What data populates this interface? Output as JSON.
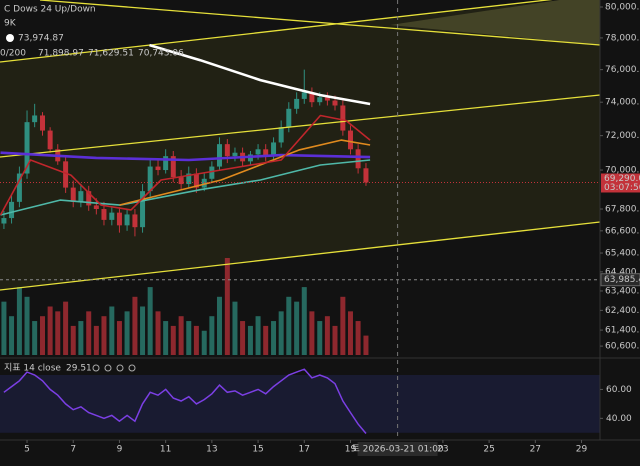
{
  "chart_data": {
    "type": "candlestick",
    "title": "C Dows 24 Up/Down",
    "subtitle": "9K",
    "ma_label": "0/200",
    "x": [
      4,
      4.33,
      4.67,
      5,
      5.33,
      5.67,
      6,
      6.33,
      6.67,
      7,
      7.33,
      7.67,
      8,
      8.33,
      8.67,
      9,
      9.33,
      9.67,
      10,
      10.33,
      10.67,
      11,
      11.33,
      11.67,
      12,
      12.33,
      12.67,
      13,
      13.33,
      13.67,
      14,
      14.33,
      14.67,
      15,
      15.33,
      15.67,
      16,
      16.33,
      16.67,
      17,
      17.33,
      17.67,
      18,
      18.33,
      18.67,
      19,
      19.33,
      19.67
    ],
    "open": [
      67000,
      67300,
      68200,
      69800,
      72800,
      73200,
      72300,
      71200,
      70500,
      69000,
      68200,
      68800,
      68000,
      67800,
      67200,
      67600,
      66900,
      67500,
      66800,
      68800,
      70200,
      70000,
      70800,
      69600,
      69200,
      69800,
      69000,
      69500,
      70200,
      71500,
      70800,
      71000,
      70500,
      70900,
      71200,
      70800,
      71600,
      72500,
      73600,
      74200,
      74600,
      74000,
      74300,
      74100,
      73800,
      72300,
      71200,
      70100
    ],
    "high": [
      67700,
      68600,
      70200,
      73500,
      73900,
      73400,
      72500,
      71500,
      70800,
      69400,
      69200,
      69100,
      68400,
      68200,
      67900,
      67900,
      67800,
      67800,
      69200,
      70600,
      70600,
      71200,
      71100,
      70000,
      70200,
      70100,
      69800,
      70500,
      71900,
      71800,
      71300,
      71300,
      71100,
      71500,
      71500,
      71900,
      72900,
      74000,
      74600,
      76000,
      74900,
      74600,
      74600,
      74400,
      74100,
      72600,
      71500,
      70400
    ],
    "low": [
      66700,
      67000,
      67900,
      69500,
      72500,
      72000,
      71000,
      70300,
      68700,
      67900,
      67900,
      67700,
      67500,
      66900,
      66900,
      66500,
      66600,
      66300,
      66500,
      68500,
      69700,
      69800,
      69300,
      68900,
      69000,
      68700,
      68800,
      69300,
      70000,
      70400,
      70500,
      70200,
      70300,
      70600,
      70500,
      70500,
      71300,
      72200,
      73300,
      73900,
      73700,
      73800,
      73800,
      73500,
      72000,
      70900,
      69800,
      69100
    ],
    "close": [
      67300,
      68200,
      69800,
      72800,
      73200,
      72300,
      71200,
      70500,
      69000,
      68200,
      68800,
      68000,
      67800,
      67200,
      67600,
      66900,
      67500,
      66800,
      68800,
      70200,
      70000,
      70800,
      69600,
      69200,
      69800,
      69000,
      69500,
      70200,
      71500,
      70800,
      71000,
      70500,
      70900,
      71200,
      70800,
      71600,
      72500,
      73600,
      74200,
      74600,
      74000,
      74300,
      74100,
      73800,
      72300,
      71200,
      70100,
      69290
    ],
    "up_color": "#2f8f80",
    "down_color": "#c3323a",
    "volume": [
      55,
      40,
      70,
      60,
      35,
      40,
      50,
      45,
      55,
      30,
      35,
      45,
      30,
      40,
      50,
      35,
      45,
      60,
      50,
      70,
      45,
      35,
      30,
      40,
      35,
      30,
      25,
      40,
      60,
      100,
      55,
      35,
      30,
      40,
      30,
      35,
      45,
      60,
      55,
      70,
      45,
      35,
      40,
      30,
      60,
      45,
      35,
      20
    ],
    "volume_lim": [
      0,
      100
    ],
    "series": [
      {
        "color": "#ffffff",
        "value_label": "73,974.87",
        "x": [
          10.3,
          12.5,
          15.1,
          17.7,
          19.85
        ],
        "values": [
          77540,
          76590,
          75350,
          74430,
          73890
        ]
      },
      {
        "color": "#5b2fd6",
        "x": [
          3.85,
          8,
          12,
          16,
          19.85
        ],
        "values": [
          71000,
          70700,
          70580,
          70860,
          70743
        ]
      },
      {
        "color": "#4fb8a8",
        "value_label": "70,743.06",
        "x": [
          3.85,
          6.43,
          9.03,
          12.5,
          15.1,
          17.7,
          19.85
        ],
        "values": [
          67470,
          68300,
          68020,
          68880,
          69430,
          70290,
          70580
        ]
      },
      {
        "color": "#e08a1e",
        "value_label": "71,629.51",
        "x": [
          9,
          13.4,
          16.8,
          18.6,
          19.85
        ],
        "values": [
          68020,
          69430,
          71170,
          71740,
          71450
        ]
      },
      {
        "color": "#c0262c",
        "value_label": "71,898.97",
        "x": [
          3.85,
          5.15,
          6.9,
          8.2,
          9.5,
          10.8,
          13.4,
          16,
          17.7,
          18.8,
          19.85
        ],
        "values": [
          67470,
          70580,
          69710,
          68020,
          67750,
          69430,
          70000,
          70580,
          73200,
          72900,
          71740
        ]
      }
    ],
    "xlim": [
      3.83,
      29.8
    ],
    "xticks": [
      5,
      7,
      9,
      11,
      13,
      15,
      17,
      19,
      23,
      25,
      27,
      29
    ],
    "ylim": [
      60160,
      80460
    ],
    "log_scale": true,
    "yticks": [
      {
        "value": 80000,
        "label": "80,000.00"
      },
      {
        "value": 78000,
        "label": "78,000.00"
      },
      {
        "value": 76000,
        "label": "76,000.00"
      },
      {
        "value": 74000,
        "label": "74,000.00"
      },
      {
        "value": 72000,
        "label": "72,000.00"
      },
      {
        "value": 70000,
        "label": "70,000.00"
      },
      {
        "value": 67800,
        "label": "67,800.00"
      },
      {
        "value": 66600,
        "label": "66,600.00"
      },
      {
        "value": 65400,
        "label": "65,400.00"
      },
      {
        "value": 64400,
        "label": "64,400.00"
      },
      {
        "value": 63400,
        "label": "63,400.00"
      },
      {
        "value": 62400,
        "label": "62,400.00"
      },
      {
        "value": 61400,
        "label": "61,400.00"
      },
      {
        "value": 60600,
        "label": "60,600.00"
      }
    ],
    "last_price": {
      "value": 69290,
      "label": "69,290.00"
    },
    "countdown": "03:07:50",
    "marker": {
      "value": 63985.44,
      "label": "63,985.44"
    },
    "cursor": {
      "x": 21.04,
      "label": "토 2026-03-21  01:00"
    },
    "rsi": {
      "title": "지표 14 close",
      "value_label": "29.51",
      "color": "#7b3fe4",
      "values": [
        58,
        62,
        66,
        72,
        70,
        66,
        60,
        56,
        50,
        46,
        48,
        44,
        42,
        40,
        42,
        38,
        42,
        38,
        50,
        58,
        56,
        60,
        54,
        52,
        55,
        50,
        53,
        57,
        63,
        58,
        59,
        56,
        58,
        60,
        57,
        62,
        66,
        70,
        72,
        74,
        68,
        70,
        68,
        64,
        52,
        44,
        36,
        29.51
      ],
      "ylim": [
        25,
        79
      ],
      "yticks": [
        {
          "value": 60,
          "label": "60.00"
        },
        {
          "value": 40,
          "label": "40.00"
        }
      ],
      "band": [
        30,
        70
      ]
    }
  }
}
